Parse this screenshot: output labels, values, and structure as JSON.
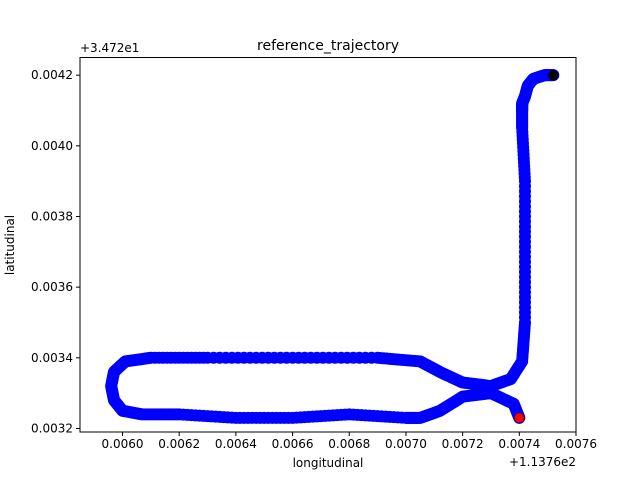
{
  "chart_data": {
    "type": "scatter",
    "title": "reference_trajectory",
    "xlabel": "longitudinal",
    "ylabel": "latitudinal",
    "x_offset_label": "+1.1376e2",
    "y_offset_label": "+3.472e1",
    "xlim": [
      0.00585,
      0.0076
    ],
    "ylim": [
      0.00319,
      0.00425
    ],
    "x_ticks": [
      {
        "value": 0.006,
        "label": "0.0060"
      },
      {
        "value": 0.0062,
        "label": "0.0062"
      },
      {
        "value": 0.0064,
        "label": "0.0064"
      },
      {
        "value": 0.0066,
        "label": "0.0066"
      },
      {
        "value": 0.0068,
        "label": "0.0068"
      },
      {
        "value": 0.007,
        "label": "0.0070"
      },
      {
        "value": 0.0072,
        "label": "0.0072"
      },
      {
        "value": 0.0074,
        "label": "0.0074"
      },
      {
        "value": 0.0076,
        "label": "0.0076"
      }
    ],
    "y_ticks": [
      {
        "value": 0.0032,
        "label": "0.0032"
      },
      {
        "value": 0.0034,
        "label": "0.0034"
      },
      {
        "value": 0.0036,
        "label": "0.0036"
      },
      {
        "value": 0.0038,
        "label": "0.0038"
      },
      {
        "value": 0.004,
        "label": "0.0040"
      },
      {
        "value": 0.0042,
        "label": "0.0042"
      }
    ],
    "grid": false,
    "series": [
      {
        "color": "#0000ff",
        "marker": "circle",
        "x": [
          0.0074,
          0.00738,
          0.0073,
          0.0072,
          0.00712,
          0.00705,
          0.007,
          0.0068,
          0.0066,
          0.0064,
          0.0062,
          0.00607,
          0.006,
          0.00597,
          0.00596,
          0.00597,
          0.00601,
          0.0061,
          0.0063,
          0.0066,
          0.0069,
          0.00705,
          0.00712,
          0.0072,
          0.0073,
          0.00737,
          0.00741,
          0.00742,
          0.00742,
          0.00742,
          0.00741,
          0.00741,
          0.00741,
          0.00742,
          0.00743,
          0.00745,
          0.00749,
          0.00752
        ],
        "y": [
          0.00323,
          0.00327,
          0.0033,
          0.00329,
          0.00325,
          0.00323,
          0.00323,
          0.00324,
          0.00323,
          0.00323,
          0.00324,
          0.00324,
          0.00325,
          0.00328,
          0.00332,
          0.00336,
          0.00339,
          0.0034,
          0.0034,
          0.0034,
          0.0034,
          0.00339,
          0.00336,
          0.00333,
          0.00332,
          0.00334,
          0.00339,
          0.0035,
          0.0037,
          0.0039,
          0.00405,
          0.0041,
          0.00412,
          0.00414,
          0.00417,
          0.00419,
          0.0042,
          0.0042
        ]
      }
    ],
    "start_point": {
      "x": 0.0074,
      "y": 0.00323,
      "color": "#ff0000"
    },
    "end_point": {
      "x": 0.00752,
      "y": 0.0042,
      "color": "#000000"
    }
  }
}
